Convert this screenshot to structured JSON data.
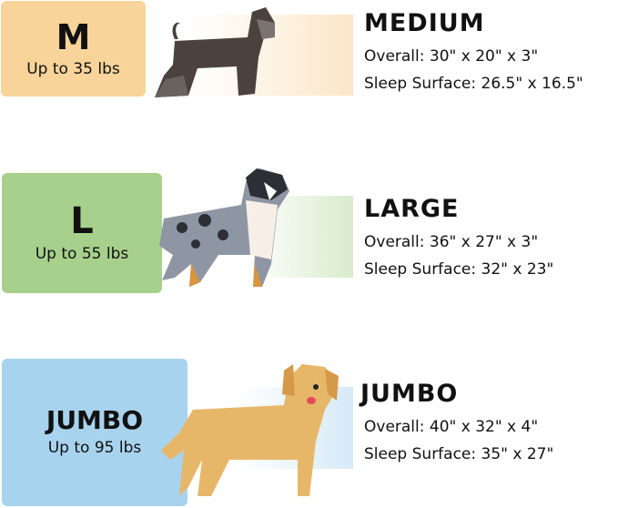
{
  "sizes": [
    {
      "code": "M",
      "weight": "Up to 35 lbs",
      "name": "MEDIUM",
      "overall": "Overall: 30\" x 20\" x 3\"",
      "sleep": "Sleep Surface: 26.5\" x 16.5\"",
      "color": "#f8d49a",
      "strip": "#fbe6c7",
      "dog": "miniature-schnauzer"
    },
    {
      "code": "L",
      "weight": "Up to 55 lbs",
      "name": "LARGE",
      "overall": "Overall: 36\" x 27\" x 3\"",
      "sleep": "Sleep Surface: 32\" x 23\"",
      "color": "#a8d08d",
      "strip": "#d9ebcd",
      "dog": "australian-shepherd"
    },
    {
      "code": "JUMBO",
      "weight": "Up to 95 lbs",
      "name": "JUMBO",
      "overall": "Overall: 40\" x 32\" x 4\"",
      "sleep": "Sleep Surface: 35\" x 27\"",
      "color": "#a8d3ee",
      "strip": "#d6eaf7",
      "dog": "golden-retriever"
    }
  ]
}
